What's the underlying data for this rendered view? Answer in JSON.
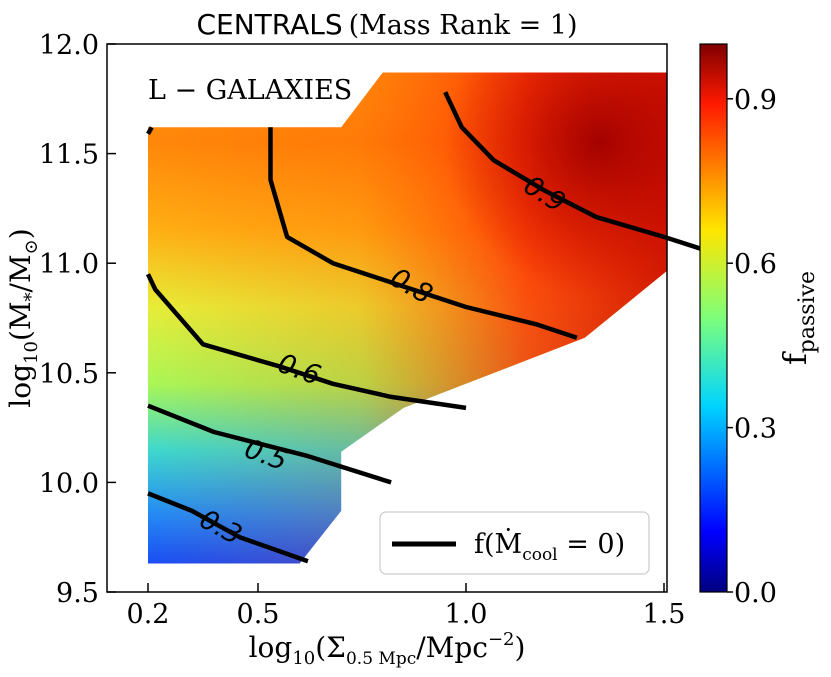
{
  "chart_data": {
    "type": "heatmap",
    "title_main": "CENTRALS",
    "title_paren": "(Mass Rank = 1)",
    "annotation": "L − GALAXIES",
    "xlabel": {
      "base": "log",
      "sub": "10",
      "mid": "(Σ",
      "sub2": "0.5 Mpc",
      "mid2": "/Mpc",
      "sup": "−2",
      "end": ")"
    },
    "ylabel": {
      "base": "log",
      "sub": "10",
      "mid": "(M",
      "sub2": "*",
      "mid2": "/M",
      "sub3": "⊙",
      "end": ")"
    },
    "xlim": [
      0.1,
      1.5
    ],
    "ylim": [
      9.5,
      12.0
    ],
    "xticks": [
      "0.2",
      "0.5",
      "1.0",
      "1.5"
    ],
    "yticks": [
      "9.5",
      "10.0",
      "10.5",
      "11.0",
      "11.5",
      "12.0"
    ],
    "colorbar": {
      "label": "f",
      "label_sub": "passive",
      "ticks": [
        "0.0",
        "0.3",
        "0.6",
        "0.9"
      ],
      "range": [
        0.0,
        1.0
      ],
      "colormap": "jet"
    },
    "legend": {
      "entry": "f(Ṁ",
      "entry_sub": "cool",
      "entry_end": " = 0)",
      "placement": "lower-right"
    },
    "contours": [
      {
        "level": "0.3",
        "label": "0.3",
        "points": [
          [
            0.2,
            9.95
          ],
          [
            0.32,
            9.87
          ],
          [
            0.45,
            9.75
          ],
          [
            0.62,
            9.64
          ]
        ]
      },
      {
        "level": "0.5",
        "label": "0.5",
        "points": [
          [
            0.2,
            10.35
          ],
          [
            0.38,
            10.23
          ],
          [
            0.62,
            10.12
          ],
          [
            0.82,
            10.0
          ]
        ]
      },
      {
        "level": "0.6",
        "label": "0.6",
        "points": [
          [
            0.2,
            10.95
          ],
          [
            0.22,
            10.88
          ],
          [
            0.35,
            10.63
          ],
          [
            0.55,
            10.53
          ],
          [
            0.68,
            10.45
          ],
          [
            0.82,
            10.39
          ],
          [
            1.0,
            10.34
          ]
        ]
      },
      {
        "level": "0.8",
        "label": "0.8",
        "points": [
          [
            0.2,
            11.59
          ],
          [
            0.21,
            11.62
          ]
        ],
        "points2": [
          [
            0.53,
            11.62
          ],
          [
            0.53,
            11.38
          ],
          [
            0.57,
            11.12
          ],
          [
            0.68,
            11.0
          ],
          [
            0.84,
            10.9
          ],
          [
            1.0,
            10.8
          ],
          [
            1.18,
            10.72
          ],
          [
            1.28,
            10.66
          ]
        ]
      },
      {
        "level": "0.9",
        "label": "0.9",
        "points": [
          [
            0.95,
            11.78
          ],
          [
            0.99,
            11.62
          ],
          [
            1.07,
            11.47
          ],
          [
            1.2,
            11.33
          ],
          [
            1.33,
            11.21
          ],
          [
            1.5,
            11.12
          ],
          [
            1.62,
            11.05
          ]
        ]
      }
    ]
  }
}
